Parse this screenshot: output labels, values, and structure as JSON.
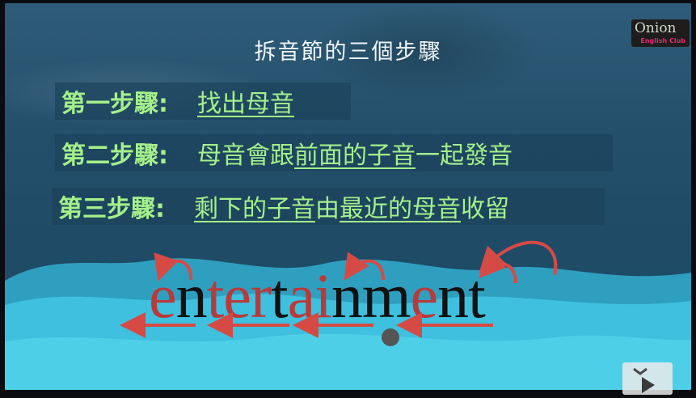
{
  "slide": {
    "title": "拆音節的三個步驟",
    "steps": [
      {
        "label": "第一步驟:",
        "parts": [
          "找出母音"
        ]
      },
      {
        "label": "第二步驟:",
        "parts": [
          "母音會跟",
          "前面的子音",
          "一起發音"
        ]
      },
      {
        "label": "第三步驟:",
        "parts": [
          "剩下的子音",
          "由",
          "最近的母音",
          "收留"
        ]
      }
    ],
    "word_letters": [
      "e",
      "n",
      "t",
      "e",
      "r",
      "t",
      "a",
      "i",
      "n",
      "m",
      "e",
      "n",
      "t"
    ]
  },
  "logo": {
    "name": "Onion",
    "club": "English Club"
  },
  "colors": {
    "step_text": "#a5f08a",
    "vowel": "#b83a3a",
    "consonant": "#111111",
    "arrow": "#d64a45"
  },
  "icons": [
    "curved-arrow-icon",
    "left-arrow-icon",
    "cursor-dot-icon",
    "play-icon"
  ]
}
